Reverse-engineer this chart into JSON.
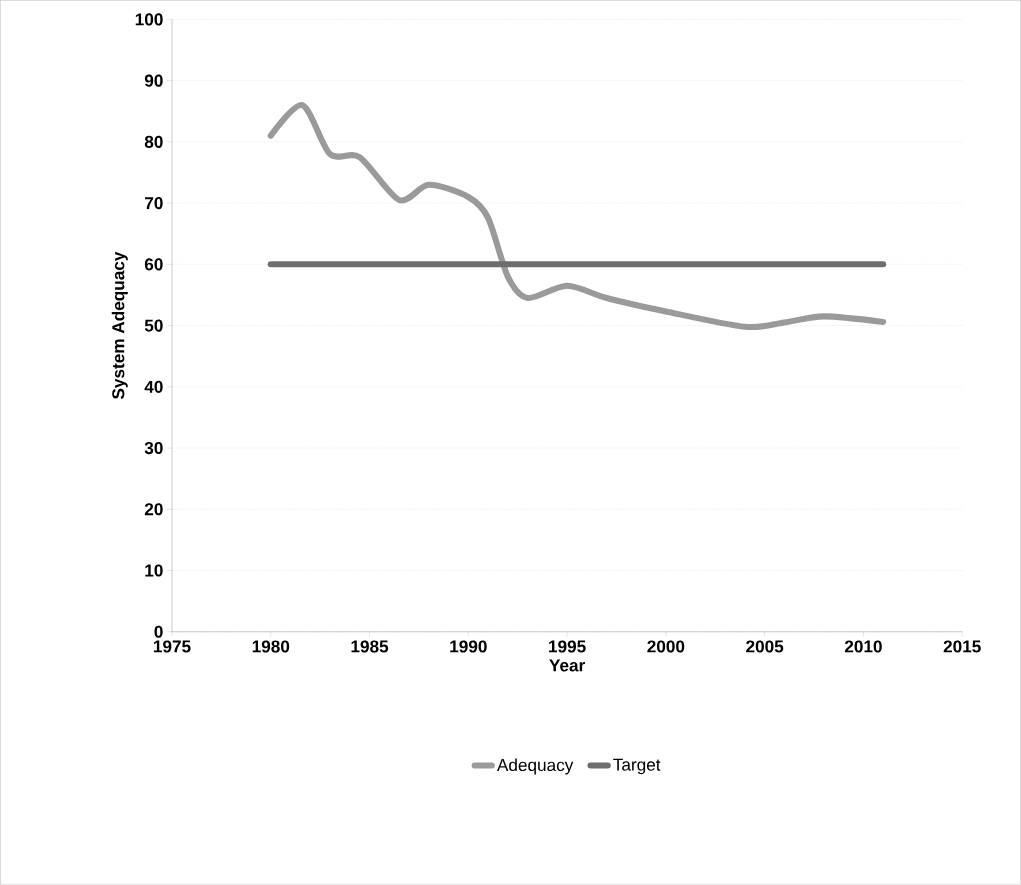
{
  "chart_data": {
    "type": "line",
    "xlabel": "Year",
    "ylabel": "System Adequacy",
    "xlim": [
      1975,
      2015
    ],
    "xticks": [
      1975,
      1980,
      1985,
      1990,
      1995,
      2000,
      2005,
      2010,
      2015
    ],
    "ylim": [
      0,
      100
    ],
    "yticks": [
      0,
      10,
      20,
      30,
      40,
      50,
      60,
      70,
      80,
      90,
      100
    ],
    "grid": "y",
    "legend": "bottom",
    "marker": "none",
    "line_style": "solid",
    "series": [
      {
        "name": "Adequacy",
        "color": "#9a9a9a",
        "x": [
          1980,
          1981.6,
          1983,
          1984.5,
          1986.5,
          1988,
          1990,
          1991,
          1992,
          1993,
          1995,
          1997,
          2000,
          2004,
          2006,
          2008,
          2011
        ],
        "values": [
          81,
          86,
          78,
          77.5,
          70.5,
          73,
          71,
          67.6,
          58,
          54.5,
          56.5,
          54.5,
          52.3,
          49.8,
          50.5,
          51.5,
          50.6
        ]
      },
      {
        "name": "Target",
        "color": "#6e6e6e",
        "x": [
          1980,
          2011
        ],
        "values": [
          60,
          60
        ]
      }
    ]
  }
}
